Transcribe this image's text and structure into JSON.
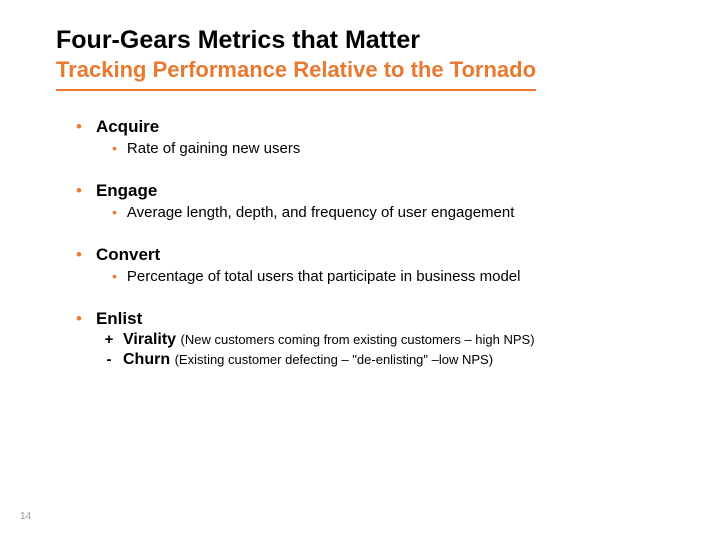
{
  "colors": {
    "accent": "#e8792f",
    "text": "#000000",
    "page_number": "#9a9a9a",
    "background": "#ffffff"
  },
  "typography": {
    "family": "Arial",
    "title_size": 25,
    "subtitle_size": 22,
    "lvl1_size": 17,
    "lvl2_size": 15,
    "paren_size": 13,
    "page_number_size": 10
  },
  "title": "Four-Gears Metrics that Matter",
  "subtitle": "Tracking Performance Relative to the Tornado",
  "sections": [
    {
      "heading": "Acquire",
      "items": [
        {
          "text": "Rate of gaining new users"
        }
      ]
    },
    {
      "heading": "Engage",
      "items": [
        {
          "text": "Average length, depth, and frequency of user engagement"
        }
      ]
    },
    {
      "heading": "Convert",
      "items": [
        {
          "text": "Percentage of total users that participate in business model"
        }
      ]
    },
    {
      "heading": "Enlist",
      "enlist_items": [
        {
          "sign": "+",
          "bold": "Virality",
          "paren": "(New customers coming from existing customers – high NPS)"
        },
        {
          "sign": "-",
          "bold": "Churn",
          "paren": "(Existing customer defecting – \"de-enlisting\" –low NPS)"
        }
      ]
    }
  ],
  "page_number": "14"
}
